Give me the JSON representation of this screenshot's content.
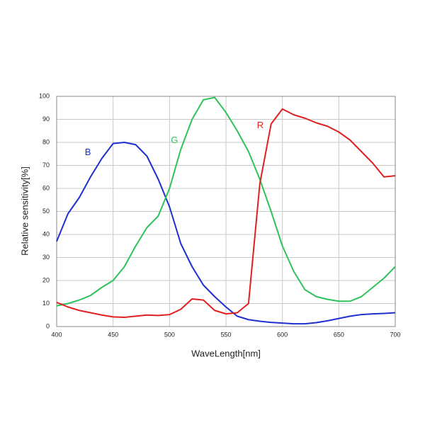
{
  "chart_data": {
    "type": "line",
    "x_label": "WaveLength[nm]",
    "y_label": "Relative sensitivity[%]",
    "x": [
      400,
      410,
      420,
      430,
      440,
      450,
      460,
      470,
      480,
      490,
      500,
      510,
      520,
      530,
      540,
      550,
      560,
      570,
      580,
      590,
      600,
      610,
      620,
      630,
      640,
      650,
      660,
      670,
      680,
      690,
      700
    ],
    "series": [
      {
        "name": "B",
        "color": "#1f2fd0",
        "values": [
          37,
          49,
          56,
          65,
          73,
          79.5,
          80,
          79,
          74,
          64,
          52,
          36,
          26,
          18,
          13,
          8.5,
          4.5,
          3,
          2.3,
          1.8,
          1.5,
          1.2,
          1.2,
          1.7,
          2.5,
          3.5,
          4.5,
          5.2,
          5.5,
          5.7,
          6
        ]
      },
      {
        "name": "G",
        "color": "#2ec25a",
        "values": [
          9,
          10,
          11.5,
          13.5,
          17,
          20,
          26,
          35,
          43,
          48,
          60,
          77,
          90,
          98.5,
          99.5,
          93,
          85,
          76,
          64,
          50,
          35,
          24,
          16,
          13,
          11.8,
          11,
          11,
          13,
          17,
          21,
          26
        ]
      },
      {
        "name": "R",
        "color": "#e02020",
        "values": [
          10.5,
          8.5,
          7,
          6,
          5,
          4.2,
          4,
          4.5,
          5,
          4.8,
          5.2,
          7.5,
          12,
          11.5,
          7,
          5.5,
          6,
          10,
          62,
          88,
          94.5,
          92,
          90.5,
          88.5,
          87,
          84.5,
          81,
          76,
          71,
          65,
          65.5
        ]
      }
    ],
    "xlim": [
      400,
      700
    ],
    "ylim": [
      0,
      100
    ],
    "xticks": [
      400,
      450,
      500,
      550,
      600,
      650,
      700
    ],
    "yticks": [
      0,
      10,
      20,
      30,
      40,
      50,
      60,
      70,
      80,
      90,
      100
    ],
    "grid": true
  }
}
